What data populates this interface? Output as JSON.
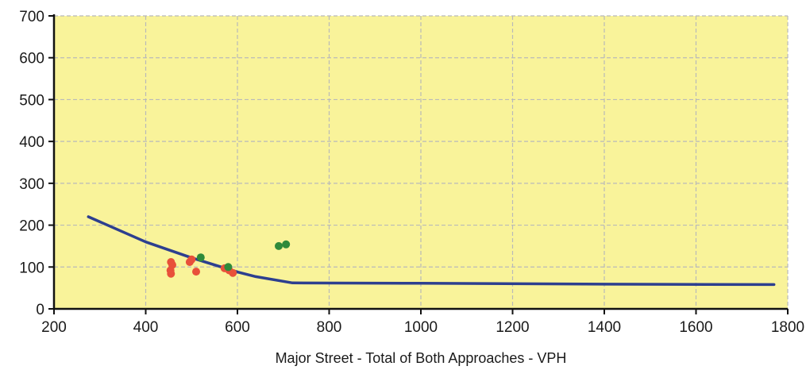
{
  "chart_data": {
    "type": "scatter",
    "title": "",
    "xlabel": "Major Street - Total of Both Approaches - VPH",
    "ylabel": "",
    "xlim": [
      200,
      1800
    ],
    "ylim": [
      0,
      700
    ],
    "x_ticks": [
      200,
      400,
      600,
      800,
      1000,
      1200,
      1400,
      1600,
      1800
    ],
    "y_ticks": [
      0,
      100,
      200,
      300,
      400,
      500,
      600,
      700
    ],
    "grid": true,
    "legend": "none",
    "colors": {
      "plot_background": "#f9f39a",
      "grid": "#b9b9b9",
      "threshold_line": "#2d3f8f",
      "red_points": "#e8503a",
      "green_points": "#2f8a3a"
    },
    "series": [
      {
        "kind": "line",
        "color": "#2d3f8f",
        "points": [
          [
            275,
            220
          ],
          [
            400,
            160
          ],
          [
            500,
            122
          ],
          [
            600,
            88
          ],
          [
            640,
            77
          ],
          [
            720,
            62
          ],
          [
            1000,
            61
          ],
          [
            1400,
            59
          ],
          [
            1770,
            58
          ]
        ]
      },
      {
        "kind": "scatter",
        "color": "#e8503a",
        "points": [
          [
            455,
            112
          ],
          [
            458,
            105
          ],
          [
            454,
            92
          ],
          [
            455,
            84
          ],
          [
            496,
            112
          ],
          [
            500,
            118
          ],
          [
            510,
            89
          ],
          [
            572,
            97
          ],
          [
            582,
            92
          ],
          [
            590,
            86
          ]
        ]
      },
      {
        "kind": "scatter",
        "color": "#2f8a3a",
        "points": [
          [
            520,
            123
          ],
          [
            580,
            100
          ],
          [
            690,
            150
          ],
          [
            706,
            154
          ]
        ]
      }
    ]
  }
}
